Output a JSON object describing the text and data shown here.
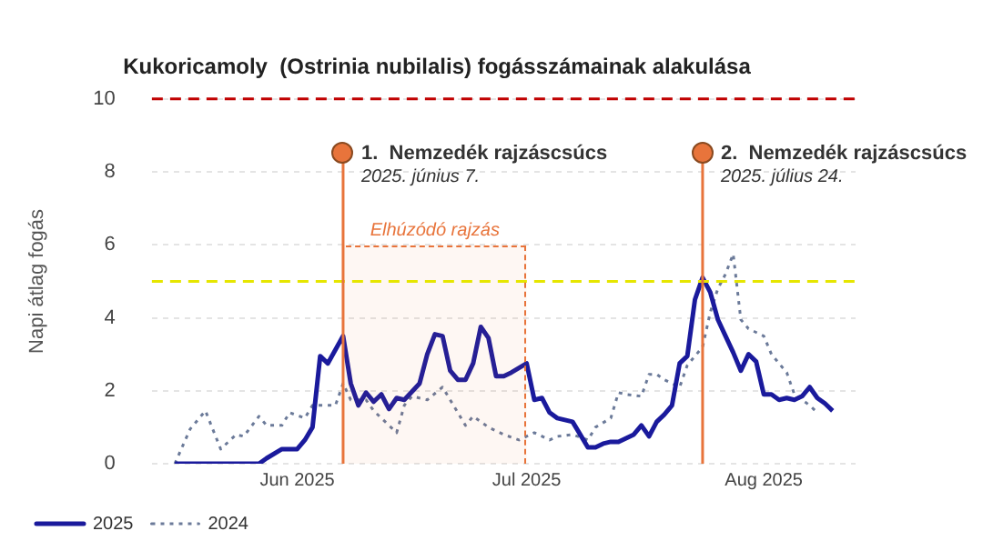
{
  "chart_data": {
    "type": "line",
    "title": "Kukoricamoly  (Ostrinia nubilalis) fogásszámainak alakulása",
    "ylabel": "Napi átlag fogás",
    "xlim": [
      "2025-05-13",
      "2025-08-13"
    ],
    "xticks": [
      {
        "value": "2025-06-01",
        "label": "Jun 2025"
      },
      {
        "value": "2025-07-01",
        "label": "Jul 2025"
      },
      {
        "value": "2025-08-01",
        "label": "Aug 2025"
      }
    ],
    "ylim": [
      0,
      10
    ],
    "yticks": [
      0,
      2,
      4,
      6,
      8,
      10
    ],
    "grid": "y",
    "legend": "bottom left",
    "marker": "none",
    "series": [
      {
        "name": "2025",
        "color": "#1a1a9c",
        "line_style": "solid",
        "x": [
          "2025-05-16",
          "2025-05-27",
          "2025-05-28",
          "2025-05-30",
          "2025-06-01",
          "2025-06-02",
          "2025-06-03",
          "2025-06-04",
          "2025-06-05",
          "2025-06-07",
          "2025-06-08",
          "2025-06-09",
          "2025-06-10",
          "2025-06-11",
          "2025-06-12",
          "2025-06-13",
          "2025-06-14",
          "2025-06-15",
          "2025-06-17",
          "2025-06-18",
          "2025-06-19",
          "2025-06-20",
          "2025-06-21",
          "2025-06-22",
          "2025-06-23",
          "2025-06-24",
          "2025-06-25",
          "2025-06-26",
          "2025-06-27",
          "2025-06-28",
          "2025-06-29",
          "2025-07-01",
          "2025-07-02",
          "2025-07-03",
          "2025-07-04",
          "2025-07-05",
          "2025-07-07",
          "2025-07-08",
          "2025-07-09",
          "2025-07-10",
          "2025-07-11",
          "2025-07-12",
          "2025-07-13",
          "2025-07-15",
          "2025-07-16",
          "2025-07-17",
          "2025-07-18",
          "2025-07-19",
          "2025-07-20",
          "2025-07-21",
          "2025-07-22",
          "2025-07-23",
          "2025-07-24",
          "2025-07-25",
          "2025-07-26",
          "2025-07-27",
          "2025-07-28",
          "2025-07-29",
          "2025-07-30",
          "2025-07-31",
          "2025-08-01",
          "2025-08-02",
          "2025-08-03",
          "2025-08-04",
          "2025-08-05",
          "2025-08-06",
          "2025-08-07",
          "2025-08-08",
          "2025-08-09",
          "2025-08-10"
        ],
        "values": [
          0,
          0,
          0.15,
          0.4,
          0.4,
          0.65,
          1.0,
          2.95,
          2.75,
          3.5,
          2.2,
          1.6,
          1.95,
          1.7,
          1.9,
          1.5,
          1.8,
          1.75,
          2.2,
          3.0,
          3.55,
          3.5,
          2.55,
          2.3,
          2.3,
          2.75,
          3.75,
          3.45,
          2.4,
          2.4,
          2.5,
          2.75,
          1.75,
          1.8,
          1.4,
          1.25,
          1.15,
          0.8,
          0.45,
          0.45,
          0.55,
          0.6,
          0.6,
          0.8,
          1.05,
          0.75,
          1.15,
          1.35,
          1.6,
          2.75,
          2.95,
          4.5,
          5.1,
          4.7,
          3.95,
          3.5,
          3.05,
          2.55,
          3.0,
          2.8,
          1.9,
          1.9,
          1.75,
          1.8,
          1.75,
          1.85,
          2.1,
          1.8,
          1.65,
          1.45
        ]
      },
      {
        "name": "2024",
        "color": "#6b7a99",
        "line_style": "dotted",
        "x": [
          "2025-05-16",
          "2025-05-18",
          "2025-05-20",
          "2025-05-22",
          "2025-05-24",
          "2025-05-25",
          "2025-05-27",
          "2025-05-28",
          "2025-05-30",
          "2025-05-31",
          "2025-06-02",
          "2025-06-03",
          "2025-06-05",
          "2025-06-06",
          "2025-06-07",
          "2025-06-08",
          "2025-06-10",
          "2025-06-11",
          "2025-06-12",
          "2025-06-14",
          "2025-06-15",
          "2025-06-16",
          "2025-06-18",
          "2025-06-20",
          "2025-06-22",
          "2025-06-23",
          "2025-06-24",
          "2025-06-26",
          "2025-06-28",
          "2025-06-30",
          "2025-07-02",
          "2025-07-04",
          "2025-07-05",
          "2025-07-07",
          "2025-07-09",
          "2025-07-10",
          "2025-07-12",
          "2025-07-13",
          "2025-07-14",
          "2025-07-16",
          "2025-07-17",
          "2025-07-18",
          "2025-07-19",
          "2025-07-21",
          "2025-07-22",
          "2025-07-24",
          "2025-07-25",
          "2025-07-26",
          "2025-07-27",
          "2025-07-28",
          "2025-07-29",
          "2025-07-30",
          "2025-08-01",
          "2025-08-02",
          "2025-08-04",
          "2025-08-05",
          "2025-08-07",
          "2025-08-08"
        ],
        "values": [
          0,
          0.95,
          1.45,
          0.4,
          0.8,
          0.75,
          1.3,
          1.05,
          1.05,
          1.4,
          1.25,
          1.6,
          1.6,
          1.6,
          2.2,
          1.75,
          1.75,
          1.45,
          1.25,
          0.85,
          1.6,
          1.85,
          1.75,
          2.1,
          1.4,
          1.05,
          1.3,
          1.0,
          0.8,
          0.65,
          0.85,
          0.65,
          0.75,
          0.8,
          0.65,
          1.0,
          1.25,
          1.95,
          1.9,
          1.85,
          2.45,
          2.45,
          2.3,
          2.1,
          2.7,
          3.2,
          4.15,
          4.8,
          5.2,
          5.75,
          3.95,
          3.7,
          3.5,
          3.0,
          2.5,
          1.9,
          1.6,
          1.4
        ]
      }
    ],
    "ref_lines": [
      {
        "axis": "y",
        "value": 10,
        "color": "#c00000",
        "line_style": "dashed"
      },
      {
        "axis": "y",
        "value": 5,
        "color": "#e6e600",
        "line_style": "dashed"
      },
      {
        "axis": "x",
        "value": "2025-06-07",
        "label": "1.  Nemzedék rajzáscsúcs",
        "color": "#e8743b",
        "line_style": "solid"
      },
      {
        "axis": "x",
        "value": "2025-07-24",
        "label": "2.  Nemzedék rajzáscsúcs",
        "color": "#e8743b",
        "line_style": "solid"
      }
    ],
    "bands": [
      {
        "axis": "x",
        "from": "2025-06-07",
        "to": "2025-07-01",
        "label": "Elhúzódó rajzás",
        "color": "#e8743b"
      }
    ],
    "annotations": [
      "2025. június 7.",
      "2025. július 24."
    ]
  }
}
